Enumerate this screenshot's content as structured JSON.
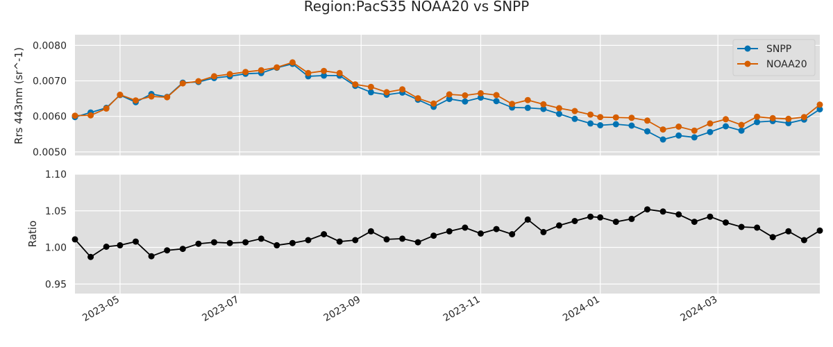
{
  "chart_data": {
    "type": "line",
    "title": "Region:PacS35 NOAA20 vs SNPP",
    "x_dates": [
      "2023-04-08",
      "2023-04-16",
      "2023-04-24",
      "2023-05-01",
      "2023-05-09",
      "2023-05-17",
      "2023-05-25",
      "2023-06-02",
      "2023-06-10",
      "2023-06-18",
      "2023-06-26",
      "2023-07-04",
      "2023-07-12",
      "2023-07-20",
      "2023-07-28",
      "2023-08-05",
      "2023-08-13",
      "2023-08-21",
      "2023-08-29",
      "2023-09-06",
      "2023-09-14",
      "2023-09-22",
      "2023-09-30",
      "2023-10-08",
      "2023-10-16",
      "2023-10-24",
      "2023-11-01",
      "2023-11-09",
      "2023-11-17",
      "2023-11-25",
      "2023-12-03",
      "2023-12-11",
      "2023-12-19",
      "2023-12-27",
      "2024-01-01",
      "2024-01-09",
      "2024-01-17",
      "2024-01-25",
      "2024-02-02",
      "2024-02-10",
      "2024-02-18",
      "2024-02-26",
      "2024-03-05",
      "2024-03-13",
      "2024-03-21",
      "2024-03-29",
      "2024-04-06",
      "2024-04-14",
      "2024-04-22"
    ],
    "x_ticks": [
      "2023-05",
      "2023-07",
      "2023-09",
      "2023-11",
      "2024-01",
      "2024-03"
    ],
    "x_tick_dates": [
      "2023-05-01",
      "2023-07-01",
      "2023-09-01",
      "2023-11-01",
      "2024-01-01",
      "2024-03-01"
    ],
    "xlim": [
      "2023-04-08",
      "2024-04-22"
    ],
    "legend": {
      "location": "top-right"
    },
    "top": {
      "ylabel": "Rrs 443nm (sr^-1)",
      "ylim": [
        0.0049,
        0.0083
      ],
      "yticks": [
        "0.0050",
        "0.0060",
        "0.0070",
        "0.0080"
      ],
      "ytick_values": [
        0.005,
        0.006,
        0.007,
        0.008
      ],
      "series": [
        {
          "name": "SNPP",
          "color": "#0072b2",
          "values": [
            0.00598,
            0.00611,
            0.00624,
            0.0066,
            0.0064,
            0.00663,
            0.00655,
            0.00695,
            0.00697,
            0.00708,
            0.00713,
            0.0072,
            0.00722,
            0.00737,
            0.00748,
            0.00713,
            0.00715,
            0.00715,
            0.00686,
            0.00668,
            0.00661,
            0.00667,
            0.00647,
            0.00627,
            0.00649,
            0.00642,
            0.00653,
            0.00643,
            0.00625,
            0.00624,
            0.00621,
            0.00607,
            0.00593,
            0.0058,
            0.00575,
            0.00578,
            0.00574,
            0.00558,
            0.00535,
            0.00546,
            0.00541,
            0.00556,
            0.00572,
            0.0056,
            0.00584,
            0.00587,
            0.00581,
            0.00591,
            0.0062
          ]
        },
        {
          "name": "NOAA20",
          "color": "#d55e00",
          "values": [
            0.00602,
            0.00603,
            0.00622,
            0.00661,
            0.00645,
            0.00656,
            0.00654,
            0.00693,
            0.00699,
            0.00713,
            0.00719,
            0.00725,
            0.0073,
            0.00738,
            0.00752,
            0.00722,
            0.00728,
            0.00722,
            0.0069,
            0.00683,
            0.00668,
            0.00676,
            0.00651,
            0.00636,
            0.00662,
            0.00659,
            0.00665,
            0.0066,
            0.00635,
            0.00646,
            0.00634,
            0.00623,
            0.00615,
            0.00605,
            0.00598,
            0.00597,
            0.00596,
            0.00588,
            0.00563,
            0.00571,
            0.0056,
            0.0058,
            0.00592,
            0.00576,
            0.00599,
            0.00595,
            0.00593,
            0.00598,
            0.00633
          ]
        }
      ]
    },
    "bottom": {
      "ylabel": "Ratio",
      "ylim": [
        0.937,
        1.1
      ],
      "yticks": [
        "0.95",
        "1.00",
        "1.05",
        "1.10"
      ],
      "ytick_values": [
        0.95,
        1.0,
        1.05,
        1.1
      ],
      "series": [
        {
          "color": "#000000",
          "values": [
            1.011,
            0.987,
            1.001,
            1.003,
            1.008,
            0.988,
            0.996,
            0.998,
            1.005,
            1.007,
            1.006,
            1.007,
            1.012,
            1.003,
            1.006,
            1.01,
            1.018,
            1.008,
            1.01,
            1.022,
            1.011,
            1.012,
            1.007,
            1.016,
            1.022,
            1.027,
            1.019,
            1.025,
            1.018,
            1.038,
            1.021,
            1.03,
            1.036,
            1.042,
            1.041,
            1.035,
            1.039,
            1.052,
            1.049,
            1.045,
            1.035,
            1.042,
            1.034,
            1.028,
            1.027,
            1.014,
            1.022,
            1.01,
            1.023
          ]
        }
      ]
    }
  }
}
